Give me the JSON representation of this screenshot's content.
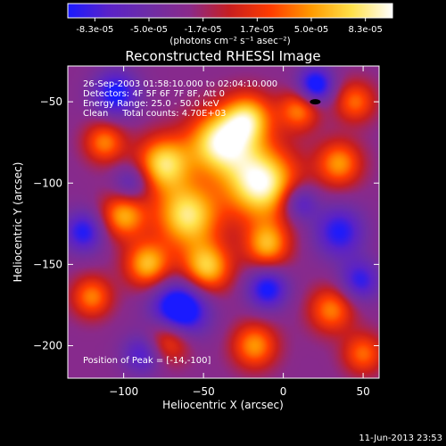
{
  "colorbar": {
    "tick_labels": [
      "-8.3e-05",
      "-5.0e-05",
      "-1.7e-05",
      "1.7e-05",
      "5.0e-05",
      "8.3e-05"
    ],
    "units_label": "(photons cm⁻² s⁻¹ asec⁻²)",
    "colors": [
      "#1a1aff",
      "#5a22c8",
      "#6e2da6",
      "#8a2a8a",
      "#c81e1e",
      "#ff3c00",
      "#ff9a00",
      "#ffe14a",
      "#ffffff"
    ],
    "range": [
      -8.3e-05,
      8.3e-05
    ]
  },
  "chart_data": {
    "type": "heatmap",
    "title": "Reconstructed RHESSI Image",
    "xlabel": "Heliocentric X (arcsec)",
    "ylabel": "Heliocentric Y (arcsec)",
    "xlim": [
      -135,
      60
    ],
    "ylim": [
      -220,
      -28
    ],
    "x_ticks": [
      -100,
      -50,
      0,
      50
    ],
    "y_ticks": [
      -50,
      -100,
      -150,
      -200
    ],
    "x_tick_labels": [
      "−100",
      "−50",
      "0",
      "50"
    ],
    "y_tick_labels": [
      "−50",
      "−100",
      "−150",
      "−200"
    ],
    "info_lines": [
      "26-Sep-2003 01:58:10.000 to 02:04:10.000",
      "Detectors: 4F 5F 6F 7F 8F, Att 0",
      "Energy Range: 25.0 - 50.0 keV",
      "Clean     Total counts: 4.70E+03"
    ],
    "peak_label": "Position of Peak = [-14,-100]",
    "peak": [
      -14,
      -100
    ],
    "sources": [
      {
        "x": -14,
        "y": -100,
        "v": 1.0,
        "r": 16
      },
      {
        "x": -40,
        "y": -75,
        "v": 0.9,
        "r": 14
      },
      {
        "x": -22,
        "y": -60,
        "v": 0.7,
        "r": 11
      },
      {
        "x": -75,
        "y": -88,
        "v": 0.8,
        "r": 12
      },
      {
        "x": -60,
        "y": -120,
        "v": 0.85,
        "r": 14
      },
      {
        "x": -100,
        "y": -120,
        "v": 0.65,
        "r": 10
      },
      {
        "x": -112,
        "y": -75,
        "v": 0.55,
        "r": 9
      },
      {
        "x": -85,
        "y": -150,
        "v": 0.7,
        "r": 10
      },
      {
        "x": -48,
        "y": -152,
        "v": 0.75,
        "r": 11
      },
      {
        "x": -10,
        "y": -138,
        "v": 0.65,
        "r": 10
      },
      {
        "x": 35,
        "y": -88,
        "v": 0.6,
        "r": 10
      },
      {
        "x": 10,
        "y": -55,
        "v": 0.55,
        "r": 9
      },
      {
        "x": 45,
        "y": -50,
        "v": 0.5,
        "r": 9
      },
      {
        "x": 30,
        "y": -178,
        "v": 0.55,
        "r": 10
      },
      {
        "x": -18,
        "y": -200,
        "v": 0.6,
        "r": 10
      },
      {
        "x": -72,
        "y": -196,
        "v": 0.55,
        "r": 10
      },
      {
        "x": -120,
        "y": -170,
        "v": 0.55,
        "r": 9
      },
      {
        "x": 50,
        "y": -205,
        "v": 0.5,
        "r": 9
      },
      {
        "x": -105,
        "y": -45,
        "v": -0.6,
        "r": 10
      },
      {
        "x": -125,
        "y": -130,
        "v": -0.55,
        "r": 9
      },
      {
        "x": 20,
        "y": -40,
        "v": -0.7,
        "r": 8
      },
      {
        "x": 35,
        "y": -130,
        "v": -0.55,
        "r": 11
      },
      {
        "x": -65,
        "y": -178,
        "v": -0.9,
        "r": 12
      },
      {
        "x": -10,
        "y": -165,
        "v": -0.6,
        "r": 9
      },
      {
        "x": 10,
        "y": -112,
        "v": -0.5,
        "r": 8
      },
      {
        "x": -88,
        "y": -205,
        "v": -0.45,
        "r": 9
      },
      {
        "x": 48,
        "y": -160,
        "v": -0.5,
        "r": 9
      },
      {
        "x": -95,
        "y": -100,
        "v": -0.4,
        "r": 8
      }
    ]
  },
  "footer": {
    "timestamp": "11-Jun-2013 23:53"
  }
}
